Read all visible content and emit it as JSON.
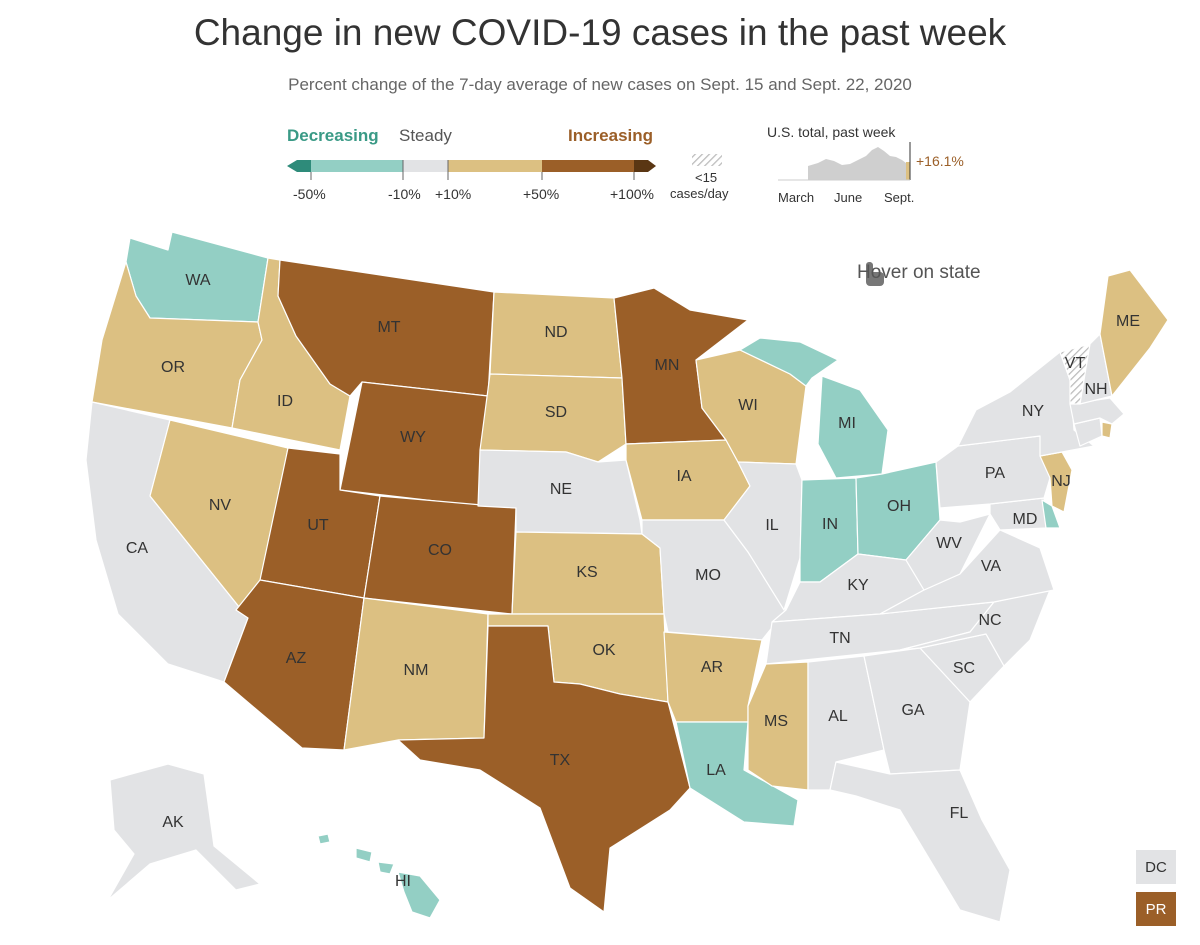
{
  "title": "Change in new COVID-19 cases in the past week",
  "subtitle": "Percent change of the 7-day average of new cases on Sept. 15 and Sept. 22, 2020",
  "legend": {
    "decreasing": "Decreasing",
    "steady": "Steady",
    "increasing": "Increasing",
    "ticks": [
      "-50%",
      "-10%",
      "+10%",
      "+50%",
      "+100%"
    ],
    "low_cases_line1": "<15",
    "low_cases_line2": "cases/day",
    "colors": {
      "dark_teal": "#2e8b7a",
      "teal": "#93cfc4",
      "steady": "#e2e3e5",
      "tan": "#dcc082",
      "brown": "#9b5f28",
      "dark_brown": "#5a3613",
      "decreasing_text": "#3a9a86",
      "increasing_text": "#9b5f28"
    }
  },
  "us_total": {
    "label": "U.S. total, past week",
    "value": "+16.1%",
    "axis": [
      "March",
      "June",
      "Sept."
    ]
  },
  "hover_hint": "Hover on state",
  "states": {
    "WA": "WA",
    "OR": "OR",
    "CA": "CA",
    "ID": "ID",
    "NV": "NV",
    "MT": "MT",
    "WY": "WY",
    "UT": "UT",
    "AZ": "AZ",
    "CO": "CO",
    "NM": "NM",
    "ND": "ND",
    "SD": "SD",
    "NE": "NE",
    "KS": "KS",
    "OK": "OK",
    "TX": "TX",
    "MN": "MN",
    "IA": "IA",
    "MO": "MO",
    "AR": "AR",
    "LA": "LA",
    "WI": "WI",
    "IL": "IL",
    "MI": "MI",
    "IN": "IN",
    "OH": "OH",
    "KY": "KY",
    "TN": "TN",
    "MS": "MS",
    "AL": "AL",
    "GA": "GA",
    "FL": "FL",
    "SC": "SC",
    "NC": "NC",
    "VA": "VA",
    "WV": "WV",
    "MD": "MD",
    "PA": "PA",
    "NY": "NY",
    "NJ": "NJ",
    "VT": "VT",
    "NH": "NH",
    "ME": "ME",
    "AK": "AK",
    "HI": "HI"
  },
  "extra_boxes": {
    "dc": "DC",
    "pr": "PR"
  }
}
